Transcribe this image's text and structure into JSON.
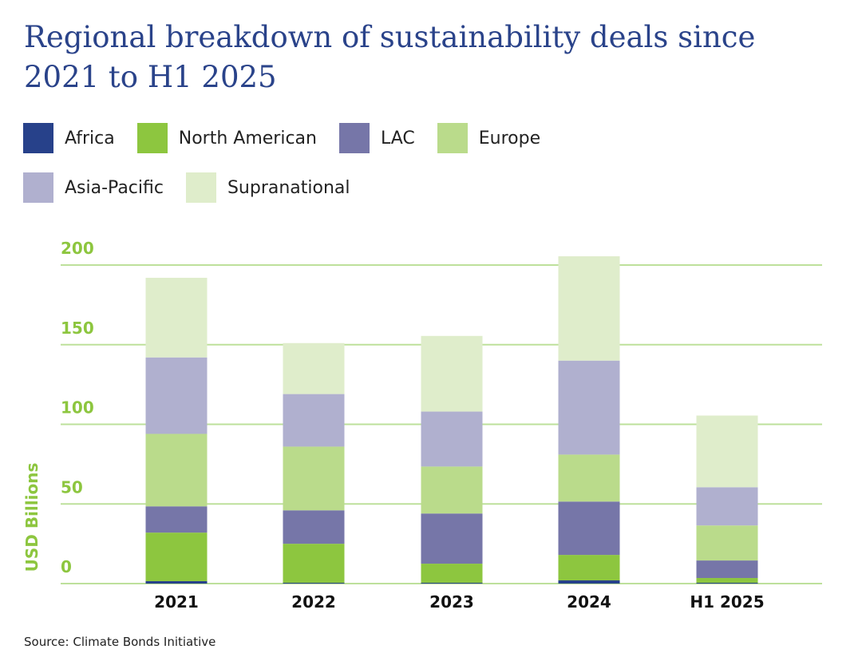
{
  "chart_data": {
    "type": "bar",
    "stacked": true,
    "title": "Regional breakdown of sustainability deals since 2021 to H1 2025",
    "xlabel": "",
    "ylabel": "USD Billions",
    "ylim": [
      0,
      200
    ],
    "yticks": [
      0,
      50,
      100,
      150,
      200
    ],
    "grid": true,
    "legend_position": "top-left",
    "categories": [
      "2021",
      "2022",
      "2023",
      "2024",
      "H1 2025"
    ],
    "series": [
      {
        "name": "Africa",
        "color": "#27418a",
        "values": [
          1.5,
          0.5,
          0.5,
          2,
          0.5
        ]
      },
      {
        "name": "North American",
        "color": "#8dc63f",
        "values": [
          30.5,
          24.5,
          12,
          16,
          3
        ]
      },
      {
        "name": "LAC",
        "color": "#7676a8",
        "values": [
          16.5,
          21,
          31.5,
          33.5,
          11
        ]
      },
      {
        "name": "Europe",
        "color": "#badb8b",
        "values": [
          45.5,
          40,
          29.5,
          29.5,
          22
        ]
      },
      {
        "name": "Asia-Pacific",
        "color": "#b0b0cf",
        "values": [
          48,
          33,
          34.5,
          59,
          24
        ]
      },
      {
        "name": "Supranational",
        "color": "#dfedcb",
        "values": [
          50,
          32,
          47.5,
          65.5,
          45
        ]
      }
    ]
  },
  "colors": {
    "title": "#2a438a",
    "axis_text": "#8dc63f",
    "gridline": "#bde09b",
    "category_text": "#111111"
  },
  "source": "Source: Climate Bonds Initiative"
}
